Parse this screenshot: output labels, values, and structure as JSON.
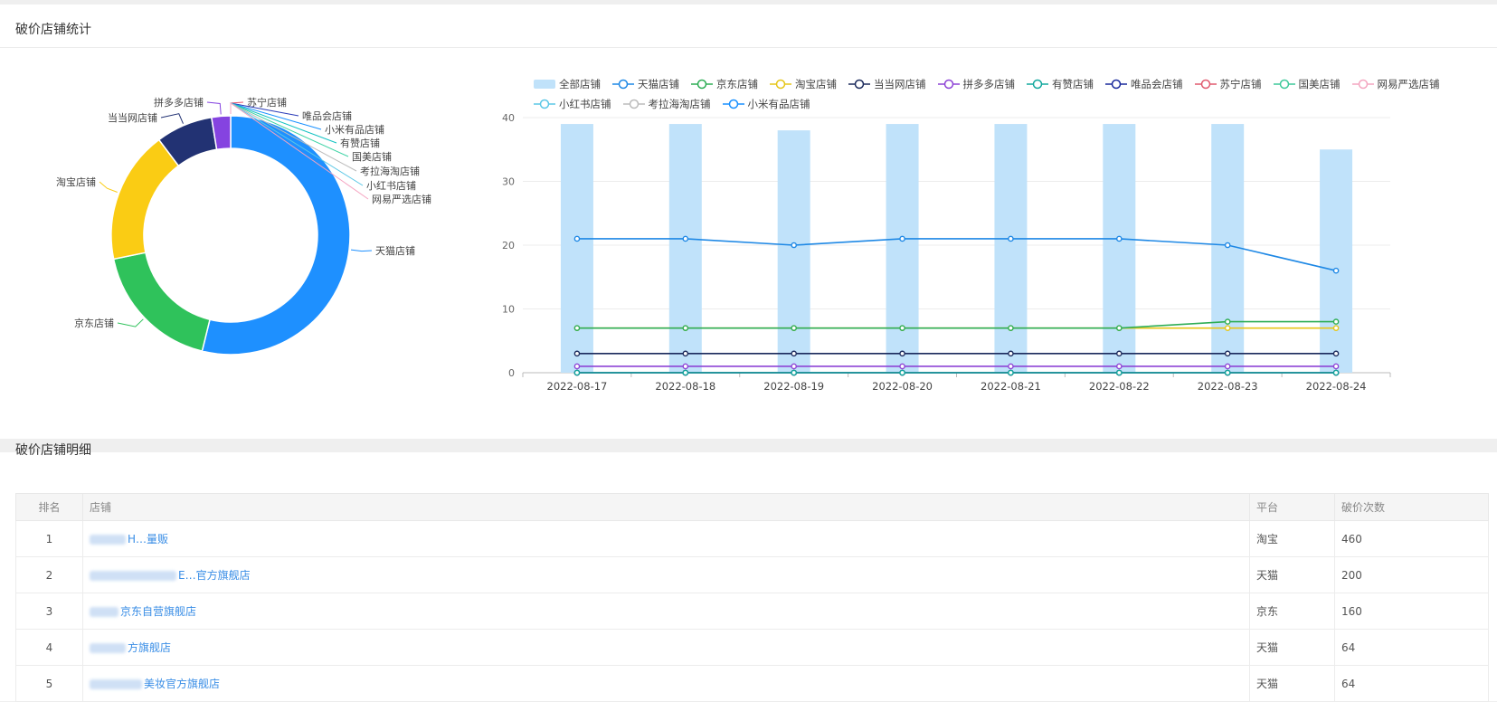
{
  "summary": {
    "title": "破价店铺统计"
  },
  "detail": {
    "title": "破价店铺明细",
    "columns": [
      "排名",
      "店铺",
      "平台",
      "破价次数"
    ],
    "rows": [
      {
        "rank": "1",
        "store": "H…量贩",
        "platform": "淘宝",
        "count": "460"
      },
      {
        "rank": "2",
        "store": "E…官方旗舰店",
        "platform": "天猫",
        "count": "200"
      },
      {
        "rank": "3",
        "store": "京东自营旗舰店",
        "platform": "京东",
        "count": "160"
      },
      {
        "rank": "4",
        "store": "方旗舰店",
        "platform": "天猫",
        "count": "64"
      },
      {
        "rank": "5",
        "store": "美妆官方旗舰店",
        "platform": "天猫",
        "count": "64"
      }
    ]
  },
  "chart_data": [
    {
      "type": "pie",
      "donut": true,
      "slices": [
        {
          "name": "天猫店铺",
          "value": 21,
          "color": "#1e90ff"
        },
        {
          "name": "京东店铺",
          "value": 7,
          "color": "#2fc25b"
        },
        {
          "name": "淘宝店铺",
          "value": 7,
          "color": "#facc14"
        },
        {
          "name": "当当网店铺",
          "value": 3,
          "color": "#223273"
        },
        {
          "name": "拼多多店铺",
          "value": 1,
          "color": "#8543e0"
        },
        {
          "name": "苏宁店铺",
          "value": 0,
          "color": "#e8546b"
        },
        {
          "name": "唯品会店铺",
          "value": 0,
          "color": "#2a3bb8"
        },
        {
          "name": "小米有品店铺",
          "value": 0,
          "color": "#1890ff"
        },
        {
          "name": "有赞店铺",
          "value": 0,
          "color": "#13c2c2"
        },
        {
          "name": "国美店铺",
          "value": 0,
          "color": "#3ed3a5"
        },
        {
          "name": "考拉海淘店铺",
          "value": 0,
          "color": "#bbbbbb"
        },
        {
          "name": "小红书店铺",
          "value": 0,
          "color": "#5bc7e6"
        },
        {
          "name": "网易严选店铺",
          "value": 0,
          "color": "#f5a3c0"
        }
      ]
    },
    {
      "type": "bar+line",
      "x": [
        "2022-08-17",
        "2022-08-18",
        "2022-08-19",
        "2022-08-20",
        "2022-08-21",
        "2022-08-22",
        "2022-08-23",
        "2022-08-24"
      ],
      "ylim": [
        0,
        40
      ],
      "yticks": [
        0,
        10,
        20,
        30,
        40
      ],
      "grid": true,
      "legend_position": "top",
      "bar_series": {
        "name": "全部店铺",
        "values": [
          39,
          39,
          38,
          39,
          39,
          39,
          39,
          35
        ],
        "color": "#c0e2fa"
      },
      "line_series": [
        {
          "name": "天猫店铺",
          "values": [
            21,
            21,
            20,
            21,
            21,
            21,
            20,
            16
          ],
          "color": "#1e88e5"
        },
        {
          "name": "京东店铺",
          "values": [
            7,
            7,
            7,
            7,
            7,
            7,
            8,
            8
          ],
          "color": "#2ead55"
        },
        {
          "name": "淘宝店铺",
          "values": [
            7,
            7,
            7,
            7,
            7,
            7,
            7,
            7
          ],
          "color": "#e6c619"
        },
        {
          "name": "当当网店铺",
          "values": [
            3,
            3,
            3,
            3,
            3,
            3,
            3,
            3
          ],
          "color": "#1b2a5c"
        },
        {
          "name": "拼多多店铺",
          "values": [
            1,
            1,
            1,
            1,
            1,
            1,
            1,
            1
          ],
          "color": "#8e44d6"
        },
        {
          "name": "有赞店铺",
          "values": [
            0,
            0,
            0,
            0,
            0,
            0,
            0,
            0
          ],
          "color": "#13a89e"
        },
        {
          "name": "唯品会店铺",
          "values": [
            0,
            0,
            0,
            0,
            0,
            0,
            0,
            0
          ],
          "color": "#1a2a9c"
        },
        {
          "name": "苏宁店铺",
          "values": [
            0,
            0,
            0,
            0,
            0,
            0,
            0,
            0
          ],
          "color": "#e05a6e"
        },
        {
          "name": "国美店铺",
          "values": [
            0,
            0,
            0,
            0,
            0,
            0,
            0,
            0
          ],
          "color": "#3ec99a"
        },
        {
          "name": "网易严选店铺",
          "values": [
            0,
            0,
            0,
            0,
            0,
            0,
            0,
            0
          ],
          "color": "#f4a6c0"
        },
        {
          "name": "小红书店铺",
          "values": [
            0,
            0,
            0,
            0,
            0,
            0,
            0,
            0
          ],
          "color": "#5bc7e6"
        },
        {
          "name": "考拉海淘店铺",
          "values": [
            0,
            0,
            0,
            0,
            0,
            0,
            0,
            0
          ],
          "color": "#bbbbbb"
        },
        {
          "name": "小米有品店铺",
          "values": [
            0,
            0,
            0,
            0,
            0,
            0,
            0,
            0
          ],
          "color": "#1890ff"
        }
      ]
    }
  ]
}
